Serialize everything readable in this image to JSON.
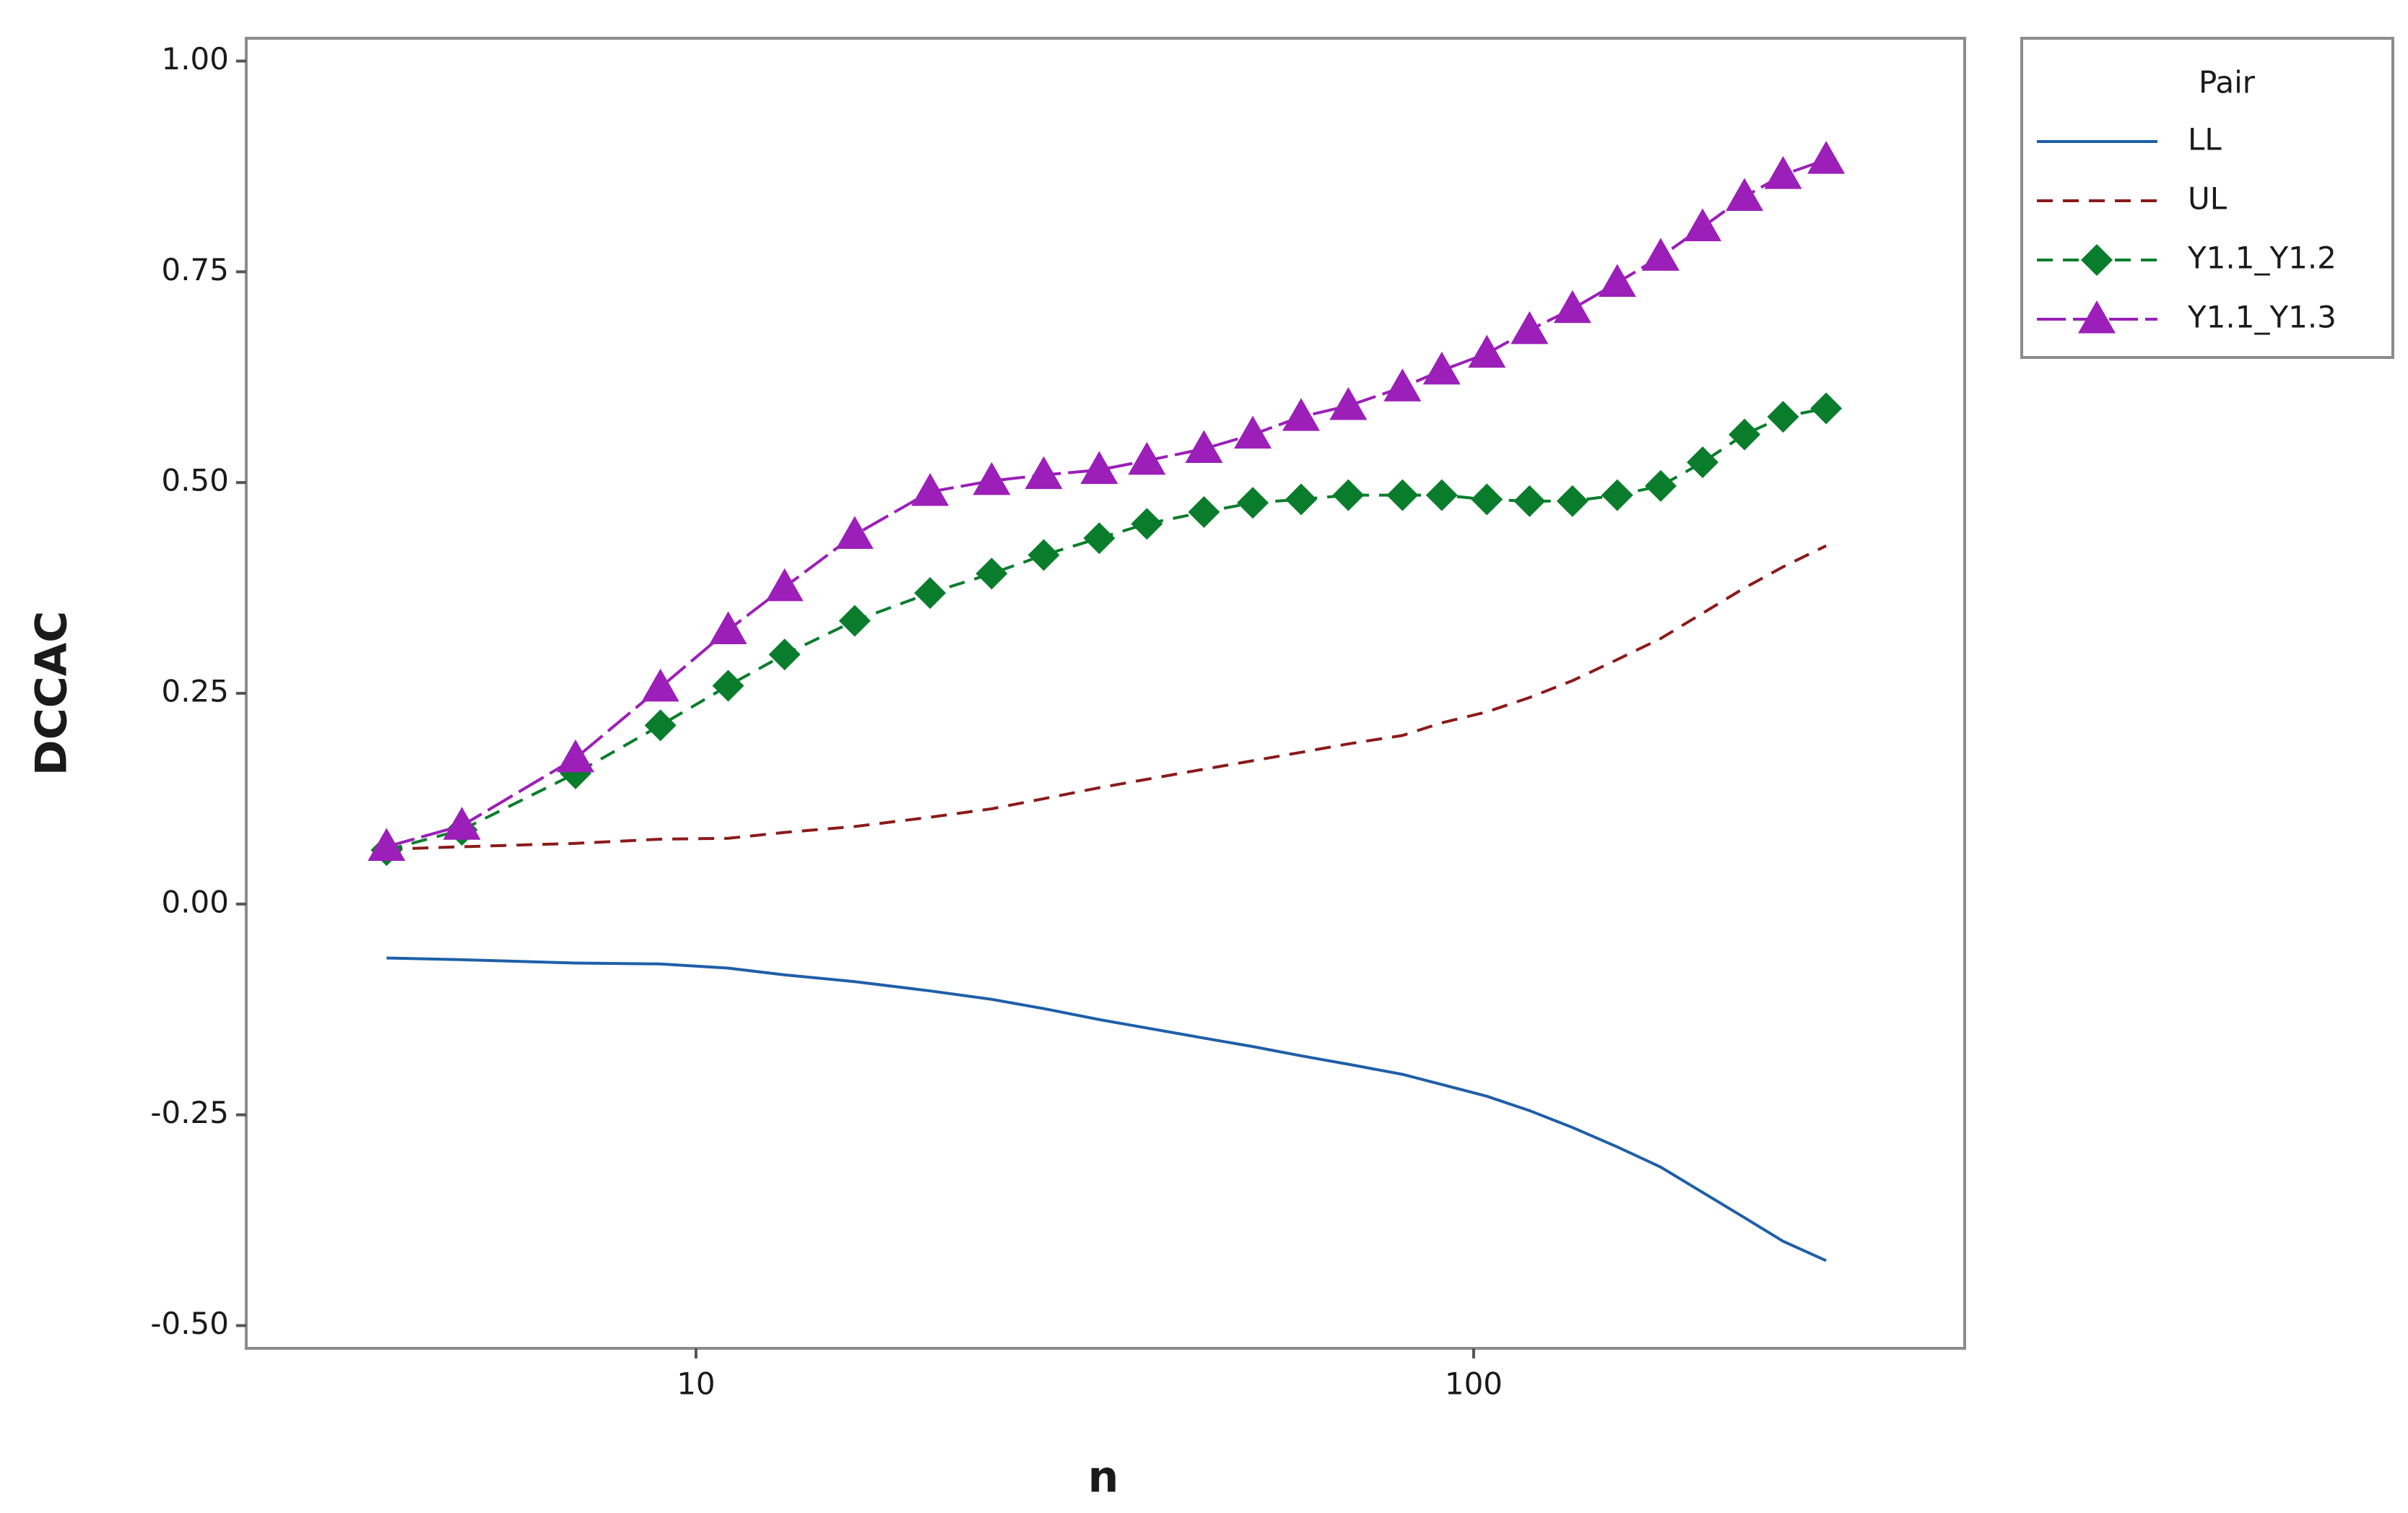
{
  "chart_data": {
    "type": "line",
    "x_label": "n",
    "y_label": "DCCAC",
    "x": [
      4,
      5,
      7,
      9,
      11,
      13,
      16,
      20,
      24,
      28,
      33,
      38,
      45,
      52,
      60,
      69,
      81,
      91,
      104,
      118,
      134,
      153,
      174,
      197,
      223,
      250,
      284
    ],
    "series": [
      {
        "name": "LL",
        "color": "#1f5fa8",
        "style": "solid",
        "marker": "none",
        "values": [
          -0.064,
          -0.066,
          -0.07,
          -0.071,
          -0.076,
          -0.084,
          -0.092,
          -0.103,
          -0.113,
          -0.124,
          -0.137,
          -0.147,
          -0.159,
          -0.169,
          -0.18,
          -0.19,
          -0.202,
          -0.214,
          -0.228,
          -0.245,
          -0.265,
          -0.288,
          -0.312,
          -0.342,
          -0.372,
          -0.4,
          -0.423
        ]
      },
      {
        "name": "UL",
        "color": "#8b1a1a",
        "style": "dashed",
        "marker": "none",
        "values": [
          0.065,
          0.068,
          0.072,
          0.077,
          0.078,
          0.085,
          0.092,
          0.103,
          0.113,
          0.125,
          0.138,
          0.148,
          0.16,
          0.17,
          0.18,
          0.19,
          0.2,
          0.215,
          0.228,
          0.245,
          0.265,
          0.29,
          0.315,
          0.345,
          0.375,
          0.4,
          0.425
        ]
      },
      {
        "name": "Y1.1_Y1.2",
        "color": "#0a7d2c",
        "style": "dashed",
        "marker": "diamond",
        "values": [
          0.064,
          0.088,
          0.155,
          0.212,
          0.259,
          0.296,
          0.336,
          0.369,
          0.392,
          0.414,
          0.434,
          0.451,
          0.465,
          0.476,
          0.48,
          0.485,
          0.485,
          0.485,
          0.48,
          0.478,
          0.478,
          0.485,
          0.496,
          0.524,
          0.557,
          0.578,
          0.588
        ]
      },
      {
        "name": "Y1.1_Y1.3",
        "color": "#9b1fb8",
        "style": "longdash",
        "marker": "triangle",
        "values": [
          0.068,
          0.093,
          0.173,
          0.257,
          0.325,
          0.376,
          0.438,
          0.489,
          0.502,
          0.509,
          0.515,
          0.526,
          0.54,
          0.557,
          0.578,
          0.591,
          0.613,
          0.633,
          0.653,
          0.681,
          0.706,
          0.737,
          0.768,
          0.803,
          0.839,
          0.865,
          0.883
        ]
      }
    ],
    "x_log": true,
    "xlim": [
      2.64,
      428
    ],
    "xticks": [
      10,
      100
    ],
    "ylim": [
      -0.527,
      1.027
    ],
    "yticks": [
      {
        "value": -0.5,
        "label": "-0.50"
      },
      {
        "value": -0.25,
        "label": "-0.25"
      },
      {
        "value": 0,
        "label": "0.00"
      },
      {
        "value": 0.25,
        "label": "0.25"
      },
      {
        "value": 0.5,
        "label": "0.50"
      },
      {
        "value": 0.75,
        "label": "0.75"
      },
      {
        "value": 1,
        "label": "1.00"
      }
    ],
    "grid": false,
    "legend_title": "Pair",
    "legend_position": "right"
  }
}
